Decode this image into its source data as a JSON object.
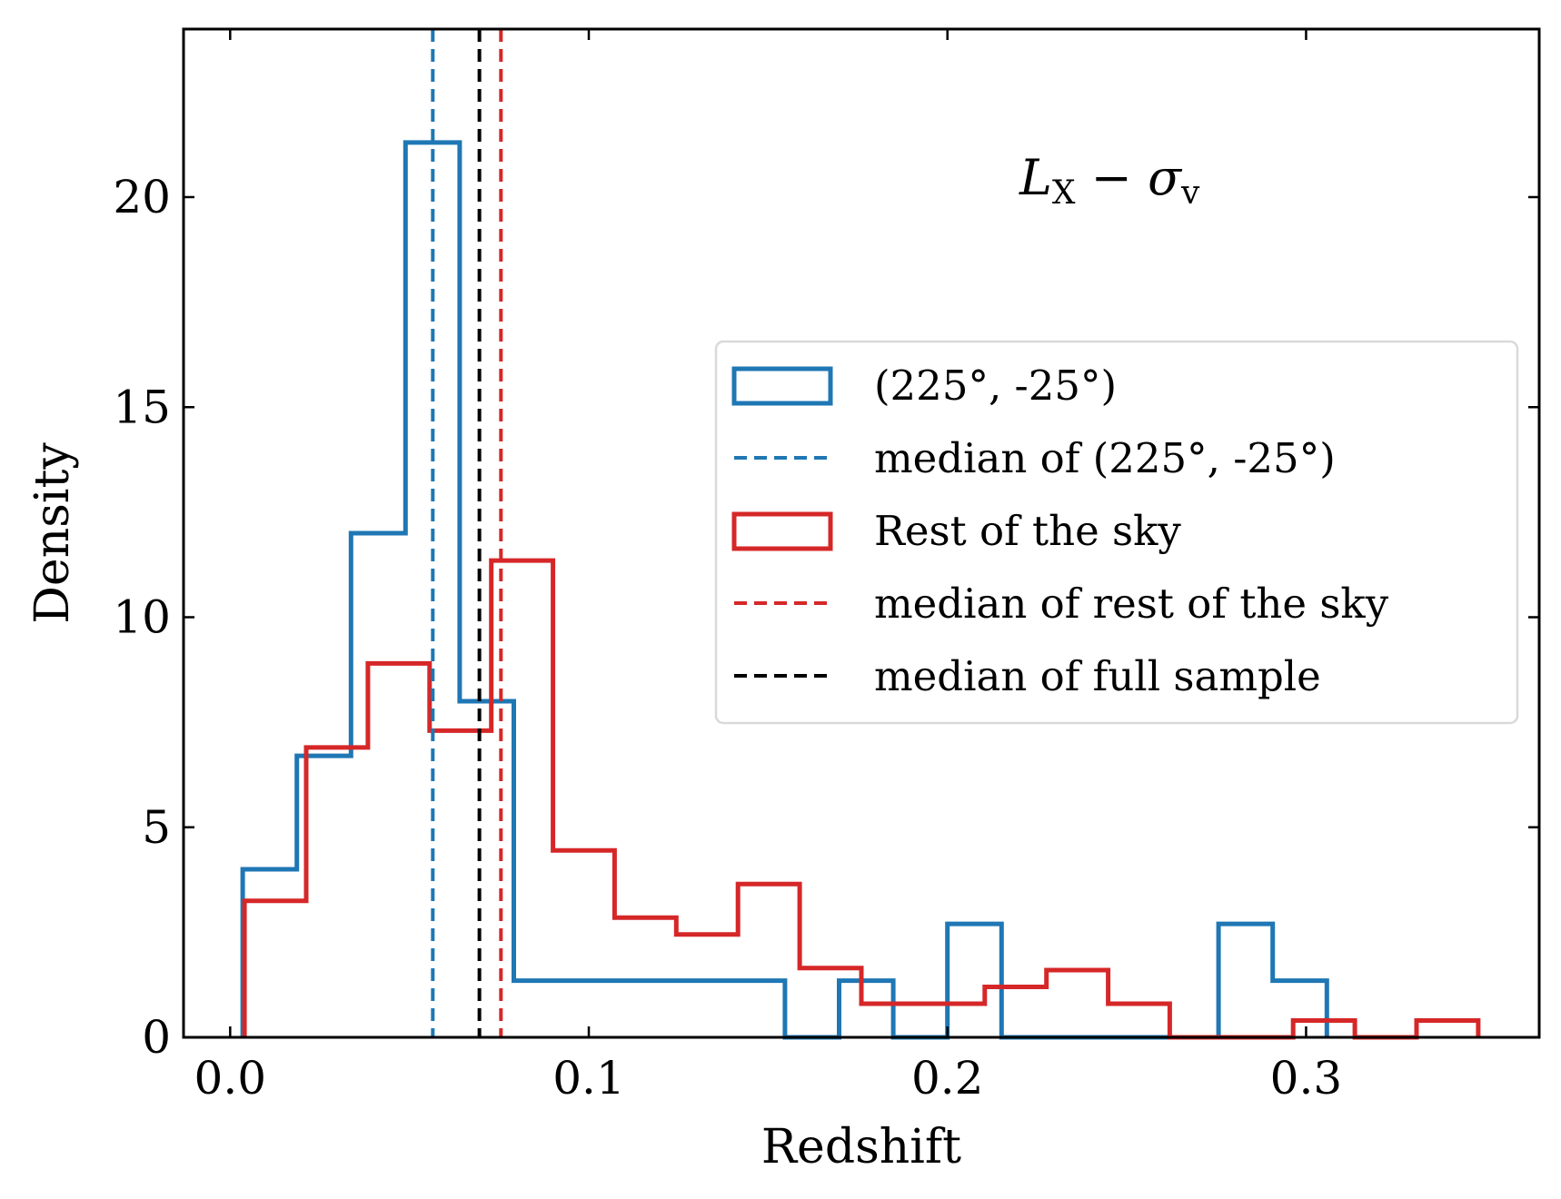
{
  "chart_data": {
    "type": "histogram",
    "xlabel": "Redshift",
    "ylabel": "Density",
    "xlim": [
      -0.013,
      0.365
    ],
    "ylim": [
      0,
      24
    ],
    "xticks": [
      0.0,
      0.1,
      0.2,
      0.3
    ],
    "xtick_labels": [
      "0.0",
      "0.1",
      "0.2",
      "0.3"
    ],
    "yticks": [
      0,
      5,
      10,
      15,
      20
    ],
    "ytick_labels": [
      "0",
      "5",
      "10",
      "15",
      "20"
    ],
    "annotation": {
      "main": "L",
      "sub": "X",
      "mid": " − ",
      "main2": "σ",
      "sub2": "v"
    },
    "legend_position": "center-right",
    "series": [
      {
        "name": "(225°, -25°)",
        "kind": "step",
        "color": "#1f77b4",
        "edges": [
          0.0035,
          0.0186,
          0.0337,
          0.0489,
          0.064,
          0.0791,
          0.0942,
          0.1093,
          0.1244,
          0.1395,
          0.1547,
          0.1698,
          0.1849,
          0.2,
          0.2151,
          0.2302,
          0.2453,
          0.2605,
          0.2756,
          0.2907,
          0.3058
        ],
        "values": [
          4.0,
          6.7,
          12.0,
          21.3,
          8.0,
          1.35,
          1.35,
          1.35,
          1.35,
          1.35,
          0.0,
          1.35,
          0.0,
          2.7,
          0.0,
          0.0,
          0.0,
          0.0,
          2.7,
          1.35
        ]
      },
      {
        "name": "Rest of the sky",
        "kind": "step",
        "color": "#d62728",
        "edges": [
          0.004,
          0.0212,
          0.0384,
          0.0556,
          0.0728,
          0.09,
          0.1072,
          0.1244,
          0.1416,
          0.1588,
          0.176,
          0.1932,
          0.2104,
          0.2276,
          0.2448,
          0.262,
          0.2792,
          0.2964,
          0.3136,
          0.3308,
          0.348
        ],
        "values": [
          3.25,
          6.9,
          8.9,
          7.3,
          11.35,
          4.45,
          2.85,
          2.45,
          3.65,
          1.65,
          0.8,
          0.8,
          1.2,
          1.6,
          0.8,
          0.0,
          0.0,
          0.4,
          0.0,
          0.4
        ]
      }
    ],
    "median_lines": [
      {
        "name": "median of (225°, -25°)",
        "x": 0.0565,
        "color": "#1f77b4",
        "style": "dashed"
      },
      {
        "name": "median of rest of the sky",
        "x": 0.0755,
        "color": "#d62728",
        "style": "dashed"
      },
      {
        "name": "median of full sample",
        "x": 0.0695,
        "color": "#000000",
        "style": "dashed"
      }
    ],
    "legend": [
      {
        "label": "(225°, -25°)",
        "kind": "patch",
        "color": "#1f77b4"
      },
      {
        "label": "median of (225°, -25°)",
        "kind": "line",
        "color": "#1f77b4"
      },
      {
        "label": "Rest of the sky",
        "kind": "patch",
        "color": "#d62728"
      },
      {
        "label": "median of rest of the sky",
        "kind": "line",
        "color": "#d62728"
      },
      {
        "label": "median of full sample",
        "kind": "line",
        "color": "#000000"
      }
    ]
  }
}
